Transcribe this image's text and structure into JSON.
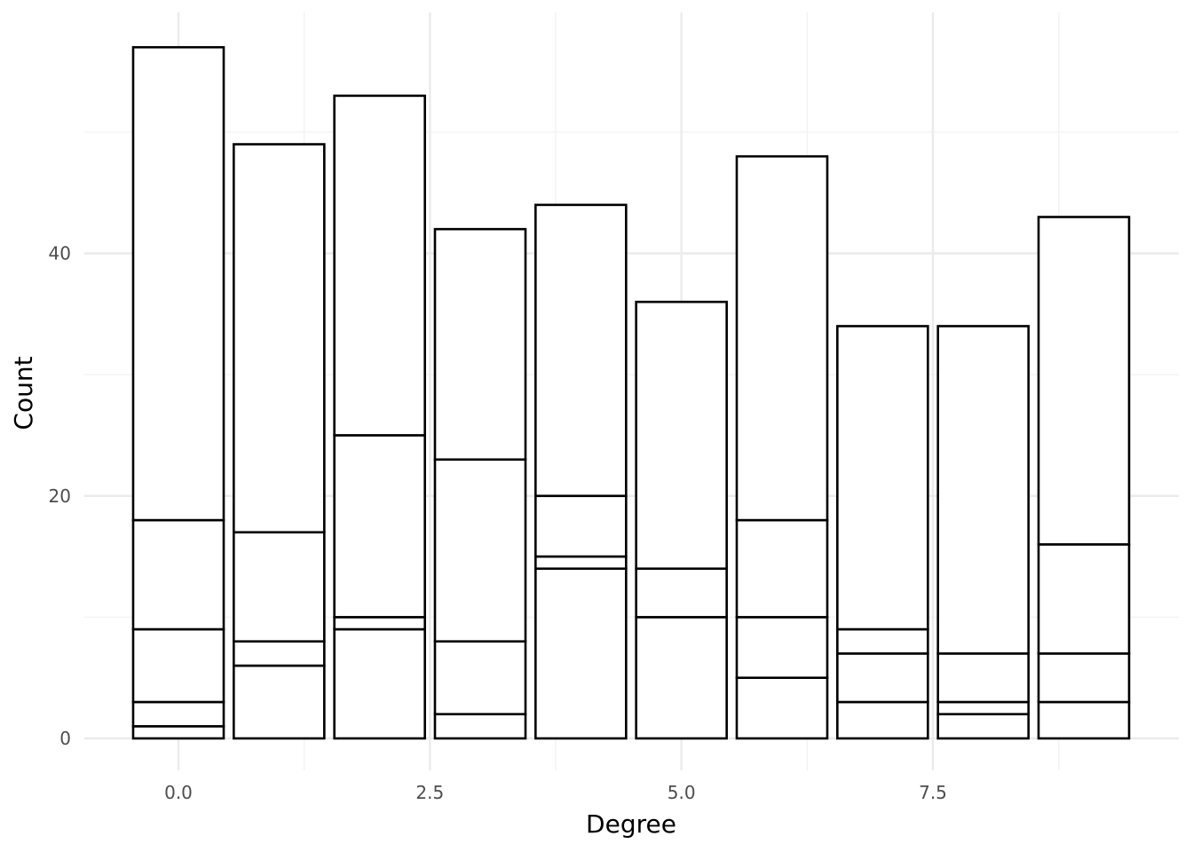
{
  "chart_data": {
    "type": "bar",
    "stacked": true,
    "xlabel": "Degree",
    "ylabel": "Count",
    "x": [
      0,
      1,
      2,
      3,
      4,
      5,
      6,
      7,
      8,
      9
    ],
    "stack_boundaries": [
      [
        1,
        3,
        9,
        18,
        57
      ],
      [
        6,
        8,
        17,
        49
      ],
      [
        9,
        10,
        25,
        53
      ],
      [
        2,
        8,
        23,
        42
      ],
      [
        14,
        15,
        20,
        44
      ],
      [
        10,
        14,
        36
      ],
      [
        5,
        10,
        18,
        48
      ],
      [
        3,
        7,
        9,
        34
      ],
      [
        2,
        3,
        7,
        34
      ],
      [
        3,
        7,
        16,
        43
      ]
    ],
    "xlim": [
      -0.5,
      9.5
    ],
    "ylim": [
      0,
      58
    ],
    "x_ticks": [
      0,
      2.5,
      5,
      7.5
    ],
    "x_tick_labels": [
      "0.0",
      "2.5",
      "5.0",
      "7.5"
    ],
    "y_ticks": [
      0,
      20,
      40
    ],
    "y_tick_labels": [
      "0",
      "20",
      "40"
    ],
    "grid": true,
    "legend": "none",
    "bar_fill": "#ffffff",
    "bar_outline": "#000000"
  }
}
